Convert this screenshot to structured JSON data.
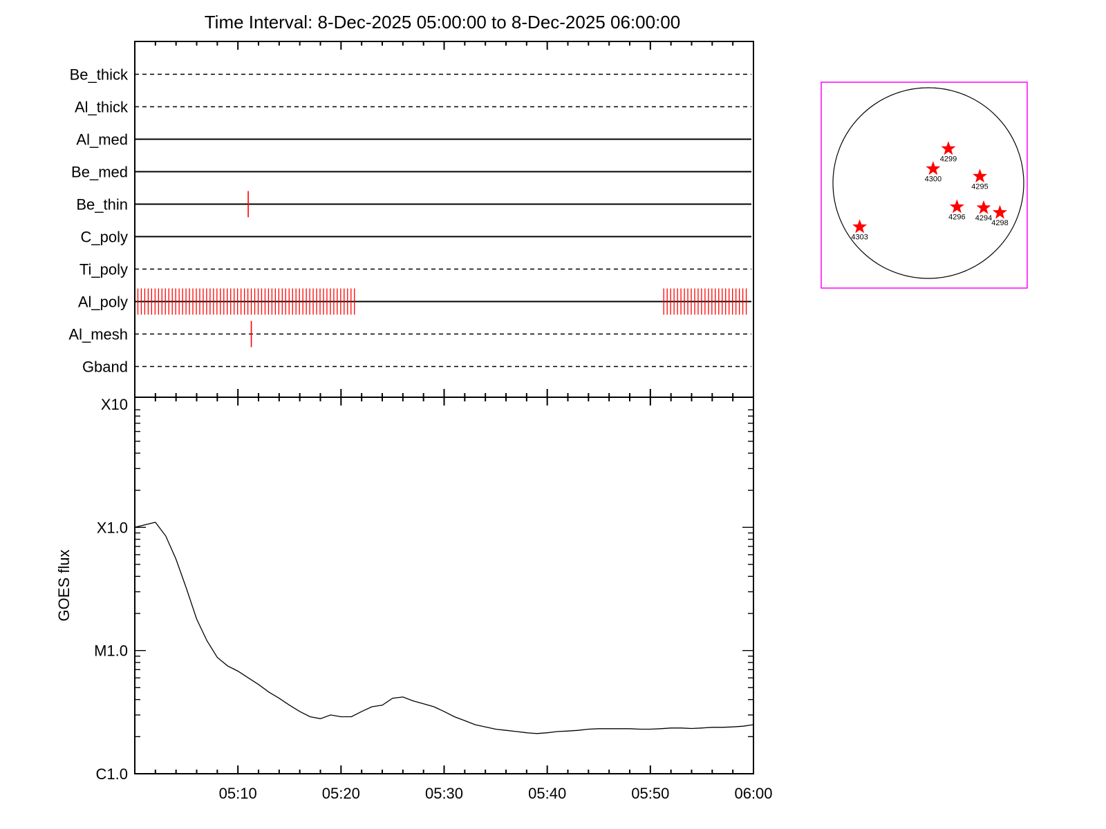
{
  "title": "Time Interval:  8-Dec-2025 05:00:00 to  8-Dec-2025 06:00:00",
  "chart_data": [
    {
      "type": "timeline",
      "x_range": [
        "05:00",
        "06:00"
      ],
      "channels": [
        {
          "name": "Be_thick",
          "line_style": "dashed",
          "marks": []
        },
        {
          "name": "Al_thick",
          "line_style": "dashed",
          "marks": []
        },
        {
          "name": "Al_med",
          "line_style": "solid",
          "marks": []
        },
        {
          "name": "Be_med",
          "line_style": "solid",
          "marks": []
        },
        {
          "name": "Be_thin",
          "line_style": "solid",
          "marks": [
            "05:11"
          ]
        },
        {
          "name": "C_poly",
          "line_style": "solid",
          "marks": []
        },
        {
          "name": "Ti_poly",
          "line_style": "dashed",
          "marks": []
        },
        {
          "name": "Al_poly",
          "line_style": "solid",
          "mark_ranges": [
            {
              "start": "05:00.3",
              "end": "05:21.6",
              "step_seconds": 20
            },
            {
              "start": "05:51.3",
              "end": "05:59.6",
              "step_seconds": 20
            }
          ]
        },
        {
          "name": "Al_mesh",
          "line_style": "dashed",
          "marks": [
            "05:11.3"
          ]
        },
        {
          "name": "Gband",
          "line_style": "dashed",
          "marks": []
        }
      ],
      "mark_color": "#ff0000"
    },
    {
      "type": "line",
      "ylabel": "GOES flux",
      "yscale": "log",
      "ylim": [
        "C1.0",
        "X10"
      ],
      "y_ticks": [
        "C1.0",
        "M1.0",
        "X1.0",
        "X10"
      ],
      "x_ticks": [
        "05:10",
        "05:20",
        "05:30",
        "05:40",
        "05:50",
        "06:00"
      ],
      "xlim": [
        "05:00",
        "06:00"
      ],
      "series": [
        {
          "x_minutes": [
            0,
            2,
            3,
            4,
            5,
            6,
            7,
            8,
            9,
            10,
            11,
            12,
            13,
            14,
            15,
            16,
            17,
            18,
            19,
            20,
            21,
            22,
            23,
            24,
            25,
            26,
            27,
            28,
            29,
            30,
            31,
            32,
            33,
            34,
            35,
            36,
            37,
            38,
            39,
            40,
            41,
            42,
            43,
            44,
            45,
            46,
            47,
            48,
            49,
            50,
            51,
            52,
            53,
            54,
            55,
            56,
            57,
            58,
            59,
            60
          ],
          "y_flux_classes": [
            "X1.0",
            "X1.1",
            "X0.85",
            "X0.55",
            "X0.32",
            "M1.8",
            "M1.2",
            "M0.88",
            "M0.75",
            "M0.68",
            "M0.60",
            "M0.53",
            "M0.46",
            "M0.41",
            "M0.36",
            "M0.32",
            "M0.29",
            "M0.28",
            "M0.30",
            "M0.29",
            "M0.29",
            "M0.32",
            "M0.35",
            "M0.36",
            "M0.41",
            "M0.42",
            "M0.39",
            "M0.37",
            "M0.35",
            "M0.32",
            "M0.29",
            "M0.27",
            "M0.25",
            "M0.24",
            "M0.23",
            "M0.225",
            "M0.22",
            "M0.215",
            "M0.212",
            "M0.215",
            "M0.22",
            "M0.222",
            "M0.225",
            "M0.23",
            "M0.232",
            "M0.232",
            "M0.232",
            "M0.232",
            "M0.23",
            "M0.23",
            "M0.232",
            "M0.235",
            "M0.235",
            "M0.233",
            "M0.235",
            "M0.238",
            "M0.238",
            "M0.24",
            "M0.243",
            "M0.25"
          ]
        }
      ]
    },
    {
      "type": "scatter",
      "description_kind": "solar_disk_active_regions",
      "points": [
        {
          "label": "4299",
          "x": 0.21,
          "y": 0.36
        },
        {
          "label": "4300",
          "x": 0.05,
          "y": 0.15
        },
        {
          "label": "4295",
          "x": 0.54,
          "y": 0.07
        },
        {
          "label": "4296",
          "x": 0.3,
          "y": -0.25
        },
        {
          "label": "4294",
          "x": 0.58,
          "y": -0.26
        },
        {
          "label": "4298",
          "x": 0.75,
          "y": -0.31
        },
        {
          "label": "4303",
          "x": -0.72,
          "y": -0.46
        }
      ],
      "marker": "star",
      "marker_color": "#ff0000",
      "frame_color": "#ff00ff"
    }
  ]
}
